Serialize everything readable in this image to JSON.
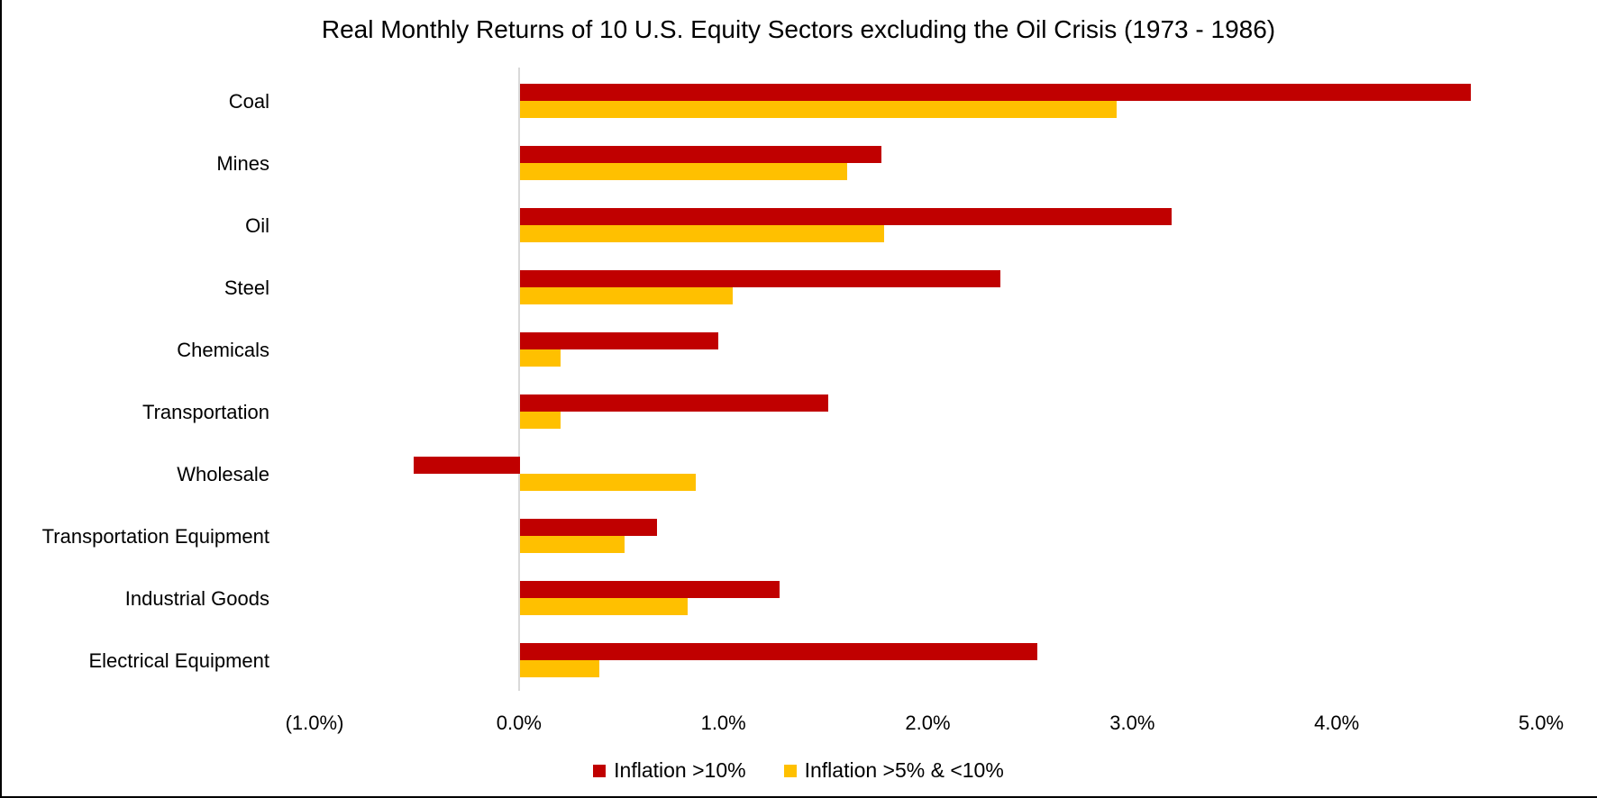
{
  "title": "Real Monthly Returns of 10 U.S. Equity Sectors excluding the Oil Crisis (1973 - 1986)",
  "colors": {
    "series_inflation_gt10": "#C00000",
    "series_inflation_5to10": "#FFC000",
    "axis_line": "#D9D9D9",
    "text": "#000000",
    "frame_border": "#000000"
  },
  "chart_data": {
    "type": "bar",
    "orientation": "horizontal",
    "title": "Real Monthly Returns of 10 U.S. Equity Sectors excluding the Oil Crisis (1973 - 1986)",
    "categories": [
      "Coal",
      "Mines",
      "Oil",
      "Steel",
      "Chemicals",
      "Transportation",
      "Wholesale",
      "Transportation Equipment",
      "Industrial Goods",
      "Electrical Equipment"
    ],
    "series": [
      {
        "name": "Inflation >10%",
        "color": "#C00000",
        "values": [
          4.65,
          1.77,
          3.19,
          2.35,
          0.97,
          1.51,
          -0.52,
          0.67,
          1.27,
          2.53
        ]
      },
      {
        "name": "Inflation >5% & <10%",
        "color": "#FFC000",
        "values": [
          2.92,
          1.6,
          1.78,
          1.04,
          0.2,
          0.2,
          0.86,
          0.51,
          0.82,
          0.39
        ]
      }
    ],
    "x_axis": {
      "unit": "%",
      "min": -1.0,
      "max": 5.0,
      "tick_labels": [
        "(1.0%)",
        "0.0%",
        "1.0%",
        "2.0%",
        "3.0%",
        "4.0%",
        "5.0%"
      ],
      "tick_values": [
        -1,
        0,
        1,
        2,
        3,
        4,
        5
      ]
    },
    "legend_position": "bottom",
    "grid": false
  }
}
